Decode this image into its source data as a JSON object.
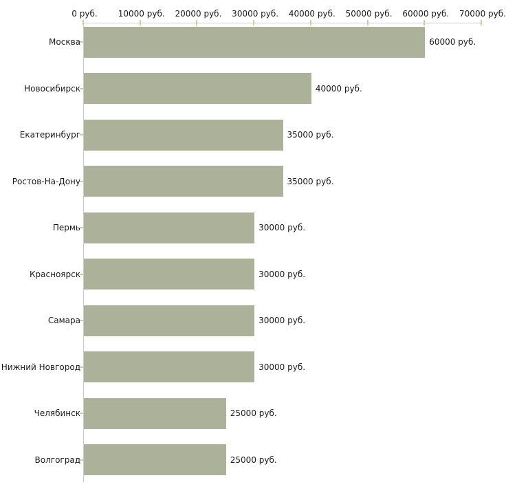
{
  "chart_data": {
    "type": "bar",
    "orientation": "horizontal",
    "title": "",
    "xlabel": "",
    "ylabel": "",
    "categories": [
      "Москва",
      "Новосибирск",
      "Екатеринбург",
      "Ростов-На-Дону",
      "Пермь",
      "Красноярск",
      "Самара",
      "Нижний Новгород",
      "Челябинск",
      "Волгоград"
    ],
    "values": [
      60000,
      40000,
      35000,
      35000,
      30000,
      30000,
      30000,
      30000,
      25000,
      25000
    ],
    "value_labels": [
      "60000 руб.",
      "40000 руб.",
      "35000 руб.",
      "35000 руб.",
      "30000 руб.",
      "30000 руб.",
      "30000 руб.",
      "30000 руб.",
      "25000 руб.",
      "25000 руб."
    ],
    "x_tick_values": [
      0,
      10000,
      20000,
      30000,
      40000,
      50000,
      60000,
      70000
    ],
    "x_tick_labels": [
      "0 руб.",
      "10000 руб.",
      "20000 руб.",
      "30000 руб.",
      "40000 руб.",
      "50000 руб.",
      "60000 руб.",
      "70000 руб."
    ],
    "xlim": [
      0,
      70000
    ],
    "grid": false,
    "legend": false,
    "colors": {
      "bar_fill": "#abb299",
      "axis_line": "#c9c9c9",
      "tick_mark": "#cccc9f",
      "text": "#1a1a1a",
      "background": "#ffffff"
    }
  }
}
